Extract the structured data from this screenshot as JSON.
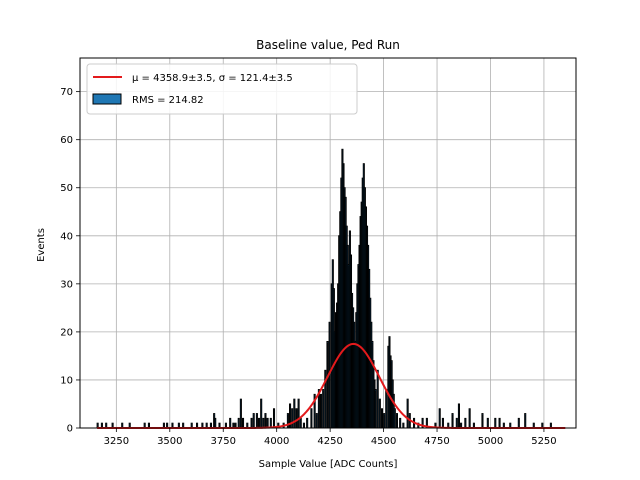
{
  "chart_data": {
    "type": "bar",
    "title": "Baseline value, Ped Run",
    "xlabel": "Sample Value [ADC Counts]",
    "ylabel": "Events",
    "xlim": [
      3080,
      5400
    ],
    "ylim": [
      0,
      77
    ],
    "xticks": [
      "3250",
      "3500",
      "3750",
      "4000",
      "4250",
      "4500",
      "4750",
      "5000",
      "5250"
    ],
    "yticks": [
      "0",
      "10",
      "20",
      "30",
      "40",
      "50",
      "60",
      "70"
    ],
    "grid": true,
    "legend_placement": "top-left",
    "legend": {
      "fit_label": "μ = 4358.9±3.5, σ = 121.4±3.5",
      "hist_label": "RMS = 214.82"
    },
    "colors": {
      "fit": "#e31a1c",
      "hist_fill": "#1f77b4",
      "hist_edge": "#000000",
      "grid": "#b0b0b0"
    },
    "histogram": {
      "bin_width": 5,
      "bins": [
        [
          3160,
          1
        ],
        [
          3180,
          1
        ],
        [
          3200,
          1
        ],
        [
          3230,
          1
        ],
        [
          3275,
          1
        ],
        [
          3310,
          1
        ],
        [
          3380,
          1
        ],
        [
          3400,
          1
        ],
        [
          3470,
          1
        ],
        [
          3485,
          1
        ],
        [
          3510,
          1
        ],
        [
          3540,
          1
        ],
        [
          3560,
          1
        ],
        [
          3600,
          1
        ],
        [
          3625,
          1
        ],
        [
          3650,
          1
        ],
        [
          3670,
          1
        ],
        [
          3690,
          1
        ],
        [
          3705,
          3
        ],
        [
          3710,
          2
        ],
        [
          3730,
          1
        ],
        [
          3760,
          1
        ],
        [
          3780,
          2
        ],
        [
          3795,
          1
        ],
        [
          3805,
          1
        ],
        [
          3820,
          2
        ],
        [
          3830,
          6
        ],
        [
          3840,
          2
        ],
        [
          3860,
          1
        ],
        [
          3880,
          2
        ],
        [
          3890,
          3
        ],
        [
          3905,
          3
        ],
        [
          3915,
          2
        ],
        [
          3925,
          6
        ],
        [
          3935,
          2
        ],
        [
          3945,
          3
        ],
        [
          3955,
          2
        ],
        [
          3970,
          2
        ],
        [
          3985,
          4
        ],
        [
          4005,
          1
        ],
        [
          4030,
          1
        ],
        [
          4050,
          3
        ],
        [
          4060,
          5
        ],
        [
          4070,
          4
        ],
        [
          4080,
          6
        ],
        [
          4090,
          4
        ],
        [
          4100,
          6
        ],
        [
          4110,
          2
        ],
        [
          4125,
          1
        ],
        [
          4140,
          2
        ],
        [
          4160,
          4
        ],
        [
          4175,
          7
        ],
        [
          4185,
          3
        ],
        [
          4195,
          8
        ],
        [
          4205,
          7
        ],
        [
          4215,
          8
        ],
        [
          4225,
          12
        ],
        [
          4235,
          18
        ],
        [
          4245,
          22
        ],
        [
          4255,
          30
        ],
        [
          4260,
          35
        ],
        [
          4265,
          29
        ],
        [
          4270,
          20
        ],
        [
          4275,
          24
        ],
        [
          4280,
          26
        ],
        [
          4285,
          30
        ],
        [
          4290,
          40
        ],
        [
          4295,
          45
        ],
        [
          4300,
          52
        ],
        [
          4305,
          58
        ],
        [
          4310,
          55
        ],
        [
          4315,
          50
        ],
        [
          4320,
          48
        ],
        [
          4325,
          42
        ],
        [
          4330,
          38
        ],
        [
          4335,
          34
        ],
        [
          4340,
          41
        ],
        [
          4345,
          36
        ],
        [
          4350,
          28
        ],
        [
          4355,
          25
        ],
        [
          4360,
          22
        ],
        [
          4365,
          18
        ],
        [
          4370,
          24
        ],
        [
          4375,
          30
        ],
        [
          4380,
          34
        ],
        [
          4385,
          38
        ],
        [
          4390,
          44
        ],
        [
          4395,
          47
        ],
        [
          4400,
          52
        ],
        [
          4405,
          55
        ],
        [
          4410,
          50
        ],
        [
          4415,
          46
        ],
        [
          4420,
          42
        ],
        [
          4425,
          38
        ],
        [
          4430,
          33
        ],
        [
          4435,
          27
        ],
        [
          4440,
          22
        ],
        [
          4445,
          18
        ],
        [
          4450,
          14
        ],
        [
          4455,
          10
        ],
        [
          4460,
          8
        ],
        [
          4470,
          12
        ],
        [
          4480,
          6
        ],
        [
          4490,
          4
        ],
        [
          4500,
          3
        ],
        [
          4510,
          8
        ],
        [
          4520,
          17
        ],
        [
          4525,
          19
        ],
        [
          4530,
          15
        ],
        [
          4535,
          14
        ],
        [
          4540,
          10
        ],
        [
          4545,
          7
        ],
        [
          4550,
          4
        ],
        [
          4560,
          3
        ],
        [
          4575,
          2
        ],
        [
          4590,
          1
        ],
        [
          4610,
          6
        ],
        [
          4620,
          3
        ],
        [
          4640,
          2
        ],
        [
          4660,
          1
        ],
        [
          4680,
          2
        ],
        [
          4700,
          2
        ],
        [
          4740,
          1
        ],
        [
          4760,
          4
        ],
        [
          4775,
          2
        ],
        [
          4800,
          1
        ],
        [
          4820,
          3
        ],
        [
          4840,
          2
        ],
        [
          4850,
          5
        ],
        [
          4860,
          1
        ],
        [
          4880,
          2
        ],
        [
          4900,
          4
        ],
        [
          4920,
          1
        ],
        [
          4960,
          3
        ],
        [
          4985,
          2
        ],
        [
          5020,
          2
        ],
        [
          5040,
          2
        ],
        [
          5060,
          1
        ],
        [
          5090,
          1
        ],
        [
          5130,
          2
        ],
        [
          5160,
          3
        ],
        [
          5200,
          1
        ],
        [
          5240,
          1
        ],
        [
          5280,
          1
        ]
      ]
    },
    "fit": {
      "mu": 4358.9,
      "sigma": 121.4,
      "amplitude": 17.5,
      "x_range": [
        3160,
        5350
      ]
    }
  }
}
